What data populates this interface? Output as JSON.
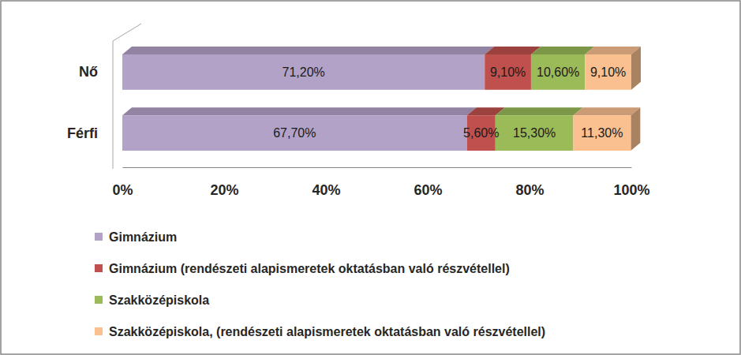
{
  "chart_data": {
    "type": "bar",
    "orientation": "horizontal",
    "stacked": true,
    "data_labels": true,
    "legend": "bottom",
    "grid": false,
    "categories": [
      "Nő",
      "Férfi"
    ],
    "series": [
      {
        "name": "Gimnázium",
        "color": "#b3a2c7",
        "values": [
          71.2,
          67.7
        ],
        "value_labels": [
          "71,20%",
          "67,70%"
        ]
      },
      {
        "name": "Gimnázium (rendészeti alapismeretek oktatásban való részvétellel)",
        "color": "#c0504d",
        "values": [
          9.1,
          5.6
        ],
        "value_labels": [
          "9,10%",
          "5,60%"
        ]
      },
      {
        "name": "Szakközépiskola",
        "color": "#9bbb59",
        "values": [
          10.6,
          15.3
        ],
        "value_labels": [
          "10,60%",
          "15,30%"
        ]
      },
      {
        "name": "Szakközépiskola, (rendészeti alapismeretek oktatásban való részvétellel)",
        "color": "#fac090",
        "values": [
          9.1,
          11.3
        ],
        "value_labels": [
          "9,10%",
          "11,30%"
        ]
      }
    ],
    "xlim": [
      0,
      100
    ],
    "xticks": [
      {
        "value": 0,
        "label": "0%"
      },
      {
        "value": 20,
        "label": "20%"
      },
      {
        "value": 40,
        "label": "40%"
      },
      {
        "value": 60,
        "label": "60%"
      },
      {
        "value": 80,
        "label": "80%"
      },
      {
        "value": 100,
        "label": "100%"
      }
    ]
  }
}
